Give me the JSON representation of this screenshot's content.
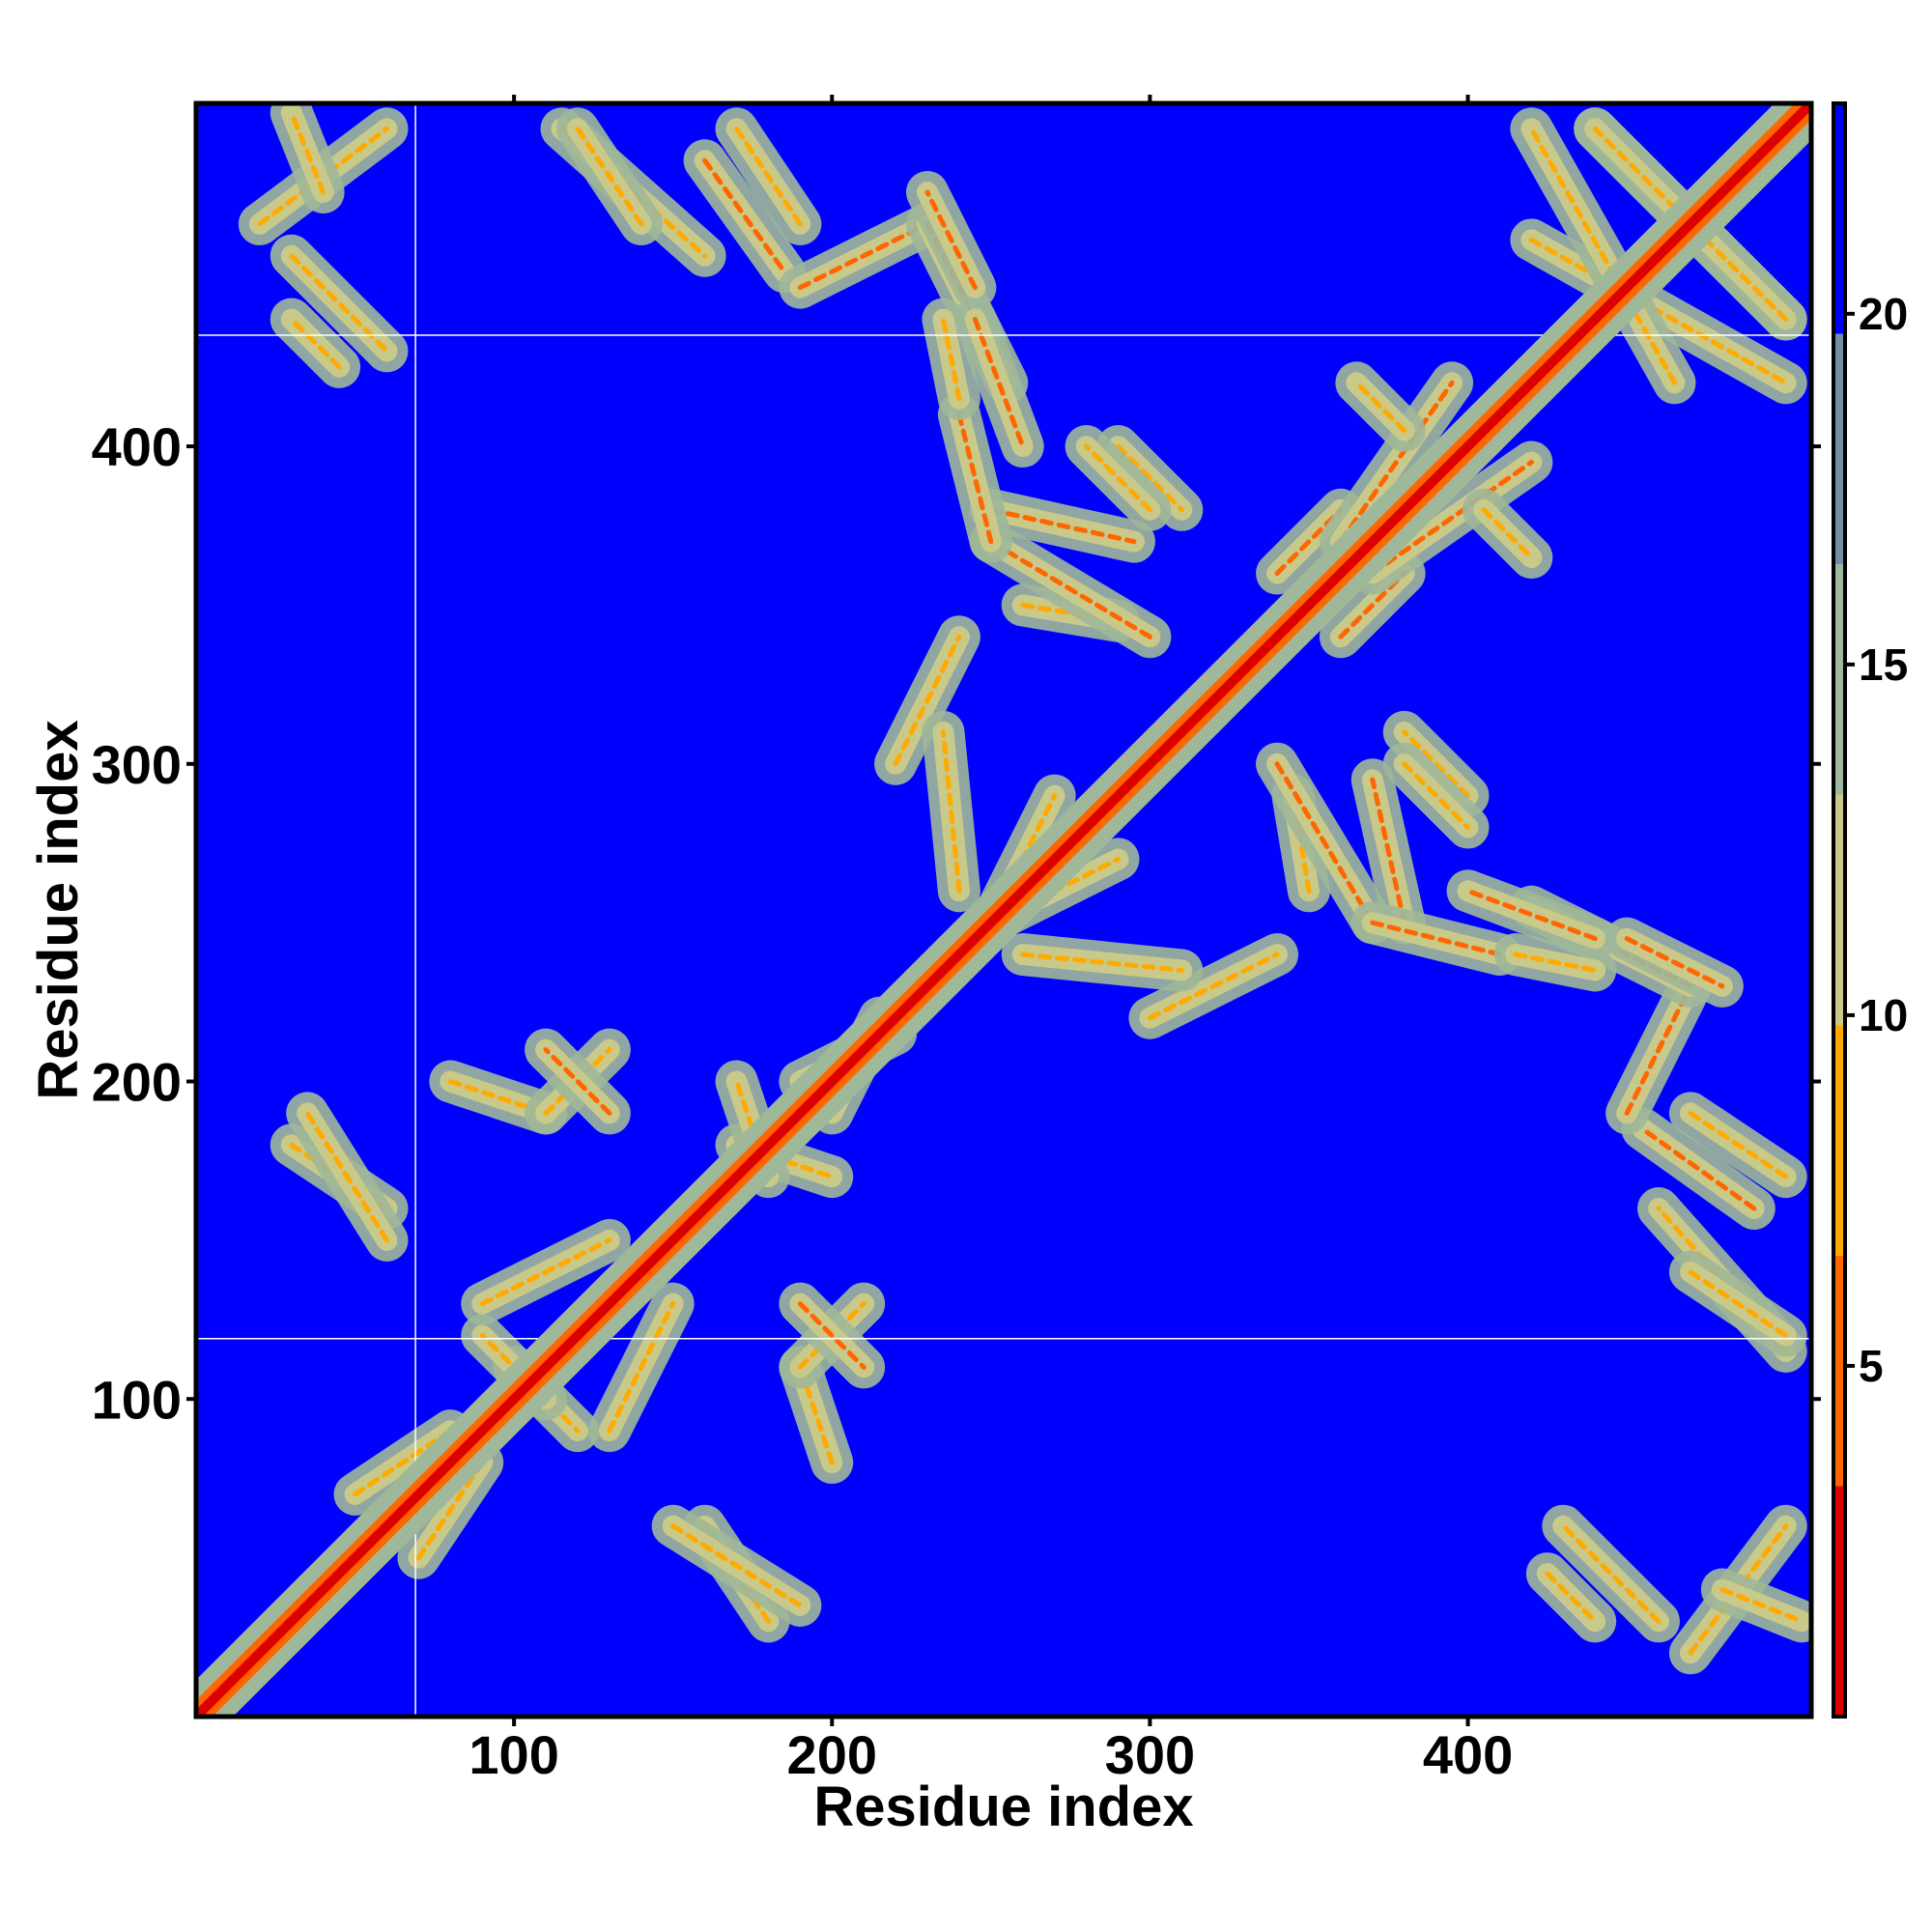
{
  "chart_data": {
    "type": "heatmap",
    "title": "",
    "xlabel": "Residue index",
    "ylabel": "Residue index",
    "xlim": [
      0,
      508
    ],
    "ylim": [
      0,
      508
    ],
    "x_ticks": [
      100,
      200,
      300,
      400
    ],
    "y_ticks": [
      100,
      200,
      300,
      400
    ],
    "grid": false,
    "legend": "colorbar-right",
    "colorbar": {
      "range": [
        0,
        23
      ],
      "ticks": [
        5,
        10,
        15,
        20
      ],
      "colors": [
        "#dd0000",
        "#ff6600",
        "#ffaa00",
        "#c9c98a",
        "#9fb89a",
        "#6f8fa6",
        "#0000ff"
      ]
    },
    "symmetric_matrix": true,
    "diagonal_value": 0,
    "background_value": 23,
    "contact_segments": [
      {
        "x": [
          20,
          60
        ],
        "y": [
          470,
          500
        ],
        "value": 11
      },
      {
        "x": [
          30,
          60
        ],
        "y": [
          460,
          430
        ],
        "value": 12
      },
      {
        "x": [
          115,
          160
        ],
        "y": [
          500,
          460
        ],
        "value": 11
      },
      {
        "x": [
          160,
          185
        ],
        "y": [
          490,
          455
        ],
        "value": 9
      },
      {
        "x": [
          190,
          230
        ],
        "y": [
          450,
          470
        ],
        "value": 10
      },
      {
        "x": [
          230,
          255
        ],
        "y": [
          470,
          420
        ],
        "value": 8
      },
      {
        "x": [
          245,
          260
        ],
        "y": [
          440,
          400
        ],
        "value": 9
      },
      {
        "x": [
          250,
          295
        ],
        "y": [
          380,
          370
        ],
        "value": 8
      },
      {
        "x": [
          290,
          310
        ],
        "y": [
          400,
          380
        ],
        "value": 11
      },
      {
        "x": [
          260,
          290
        ],
        "y": [
          350,
          345
        ],
        "value": 12
      },
      {
        "x": [
          220,
          240
        ],
        "y": [
          300,
          340
        ],
        "value": 11
      },
      {
        "x": [
          250,
          270
        ],
        "y": [
          250,
          290
        ],
        "value": 11
      },
      {
        "x": [
          260,
          310
        ],
        "y": [
          240,
          235
        ],
        "value": 12
      },
      {
        "x": [
          340,
          360
        ],
        "y": [
          360,
          380
        ],
        "value": 9
      },
      {
        "x": [
          360,
          395
        ],
        "y": [
          370,
          420
        ],
        "value": 10
      },
      {
        "x": [
          405,
          420
        ],
        "y": [
          380,
          365
        ],
        "value": 11
      },
      {
        "x": [
          340,
          370
        ],
        "y": [
          300,
          250
        ],
        "value": 10
      },
      {
        "x": [
          370,
          410
        ],
        "y": [
          250,
          240
        ],
        "value": 10
      },
      {
        "x": [
          380,
          400
        ],
        "y": [
          300,
          280
        ],
        "value": 11
      },
      {
        "x": [
          415,
          440
        ],
        "y": [
          240,
          235
        ],
        "value": 11
      },
      {
        "x": [
          450,
          480
        ],
        "y": [
          245,
          230
        ],
        "value": 10
      },
      {
        "x": [
          470,
          500
        ],
        "y": [
          190,
          170
        ],
        "value": 11
      },
      {
        "x": [
          470,
          500
        ],
        "y": [
          140,
          120
        ],
        "value": 12
      },
      {
        "x": [
          480,
          505
        ],
        "y": [
          40,
          30
        ],
        "value": 11
      },
      {
        "x": [
          425,
          440
        ],
        "y": [
          45,
          30
        ],
        "value": 13
      },
      {
        "x": [
          440,
          500
        ],
        "y": [
          500,
          440
        ],
        "value": 11
      },
      {
        "x": [
          420,
          500
        ],
        "y": [
          465,
          420
        ],
        "value": 12
      },
      {
        "x": [
          30,
          60
        ],
        "y": [
          180,
          160
        ],
        "value": 11
      },
      {
        "x": [
          80,
          110
        ],
        "y": [
          200,
          190
        ],
        "value": 12
      },
      {
        "x": [
          110,
          130
        ],
        "y": [
          190,
          210
        ],
        "value": 11
      },
      {
        "x": [
          170,
          200
        ],
        "y": [
          180,
          170
        ],
        "value": 12
      },
      {
        "x": [
          190,
          220
        ],
        "y": [
          200,
          215
        ],
        "value": 11
      },
      {
        "x": [
          100,
          120
        ],
        "y": [
          110,
          90
        ],
        "value": 11
      },
      {
        "x": [
          190,
          210
        ],
        "y": [
          130,
          110
        ],
        "value": 10
      },
      {
        "x": [
          150,
          190
        ],
        "y": [
          60,
          35
        ],
        "value": 11
      },
      {
        "x": [
          50,
          80
        ],
        "y": [
          70,
          90
        ],
        "value": 12
      },
      {
        "x": [
          90,
          130
        ],
        "y": [
          130,
          150
        ],
        "value": 12
      }
    ],
    "white_lines": {
      "x": [
        69
      ],
      "y": [
        119,
        435
      ]
    }
  }
}
